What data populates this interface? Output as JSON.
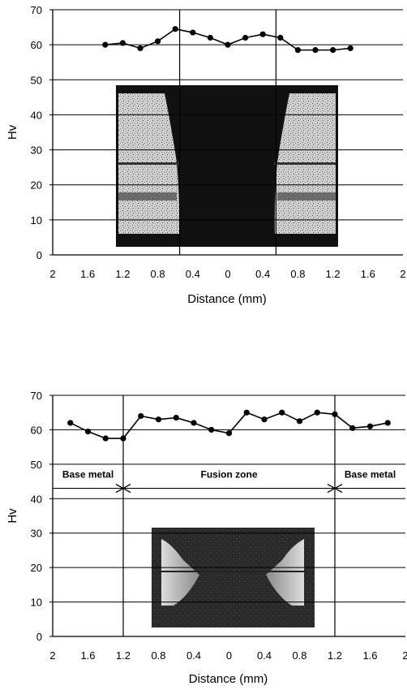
{
  "colors": {
    "line": "#000000",
    "grid": "#000000",
    "micrograph_dark": "#111111",
    "micrograph_light": "#cfcfcf"
  },
  "chart_data": [
    {
      "type": "line",
      "title": "",
      "xlabel": "Distance (mm)",
      "ylabel": "Hv",
      "xlim": [
        -2,
        2
      ],
      "ylim": [
        0,
        70
      ],
      "x_tick_values": [
        -2,
        -1.6,
        -1.2,
        -0.8,
        -0.4,
        0,
        0.4,
        0.8,
        1.2,
        1.6,
        2
      ],
      "x_tick_labels": [
        "2",
        "1.6",
        "1.2",
        "0.8",
        "0.4",
        "0",
        "0.4",
        "0.8",
        "1.2",
        "1.6",
        "2"
      ],
      "y_ticks": [
        0,
        10,
        20,
        30,
        40,
        50,
        60,
        70
      ],
      "grid": "horizontal",
      "vlines": [
        -0.55,
        0.55
      ],
      "series": [
        {
          "x": [
            -1.4,
            -1.2,
            -1.0,
            -0.8,
            -0.6,
            -0.4,
            -0.2,
            0,
            0.2,
            0.4,
            0.6,
            0.8,
            1.0,
            1.2,
            1.4
          ],
          "y": [
            60,
            60.5,
            59,
            61,
            64.5,
            63.5,
            62,
            60,
            62,
            63,
            62,
            58.5,
            58.5,
            58.5,
            59
          ]
        }
      ],
      "inset_image": "weld-cross-section-micrograph",
      "annotations": []
    },
    {
      "type": "line",
      "title": "",
      "xlabel": "Distance (mm)",
      "ylabel": "Hv",
      "xlim": [
        -2,
        2
      ],
      "ylim": [
        0,
        70
      ],
      "x_tick_values": [
        -2,
        -1.6,
        -1.2,
        -0.8,
        -0.4,
        0,
        0.4,
        0.8,
        1.2,
        1.6,
        2
      ],
      "x_tick_labels": [
        "2",
        "1.6",
        "1.2",
        "0.8",
        "0.4",
        "0",
        "0.4",
        "0.8",
        "1.2",
        "1.6",
        "2"
      ],
      "y_ticks": [
        0,
        10,
        20,
        30,
        40,
        50,
        60,
        70
      ],
      "grid": "horizontal",
      "vlines": [
        -1.2,
        1.2
      ],
      "series": [
        {
          "x": [
            -1.8,
            -1.6,
            -1.4,
            -1.2,
            -1.0,
            -0.8,
            -0.6,
            -0.4,
            -0.2,
            0,
            0.2,
            0.4,
            0.6,
            0.8,
            1.0,
            1.2,
            1.4,
            1.6,
            1.8
          ],
          "y": [
            62,
            59.5,
            57.5,
            57.5,
            64,
            63,
            63.5,
            62,
            60,
            59,
            65,
            63,
            65,
            62.5,
            65,
            64.5,
            60.5,
            61,
            62
          ]
        }
      ],
      "inset_image": "weld-cross-section-micrograph",
      "zone_line_y": 43,
      "annotations": [
        {
          "text": "Base metal",
          "x": -1.6,
          "y": 47
        },
        {
          "text": "Fusion zone",
          "x": 0,
          "y": 47
        },
        {
          "text": "Base metal",
          "x": 1.6,
          "y": 47
        }
      ]
    }
  ]
}
